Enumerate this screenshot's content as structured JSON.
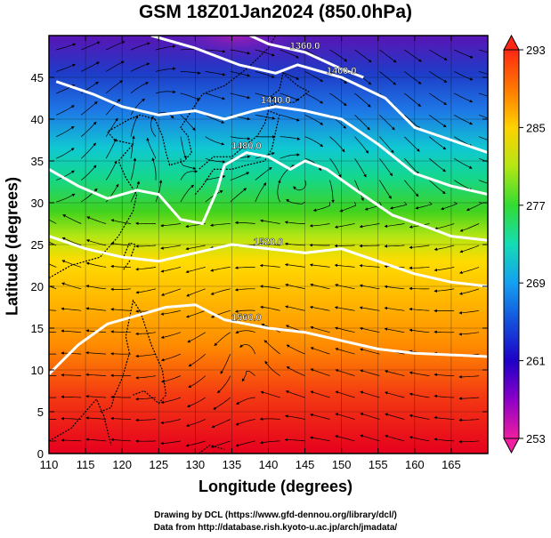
{
  "title": "GSM 18Z01Jan2024 (850.0hPa)",
  "axes": {
    "xlabel": "Longitude (degrees)",
    "ylabel": "Latitude  (degrees)",
    "x_ticks": [
      "110",
      "115",
      "120",
      "125",
      "130",
      "135",
      "140",
      "145",
      "150",
      "155",
      "160",
      "165"
    ],
    "y_ticks": [
      "0",
      "5",
      "10",
      "15",
      "20",
      "25",
      "30",
      "35",
      "40",
      "45"
    ]
  },
  "colorbar": {
    "labels": [
      "293",
      "285",
      "277",
      "269",
      "261",
      "253"
    ]
  },
  "contour_labels": [
    "1360.0",
    "1400.0",
    "1440.0",
    "1480.0",
    "1520.0",
    "1560.0"
  ],
  "credits": {
    "line1": "Drawing by DCL (https://www.gfd-dennou.org/library/dcl/)",
    "line2": "Data from http://database.rish.kyoto-u.ac.jp/arch/jmadata/"
  },
  "chart_data": {
    "type": "heatmap",
    "title": "GSM 18Z01Jan2024 (850.0hPa)",
    "xlabel": "Longitude (degrees)",
    "ylabel": "Latitude  (degrees)",
    "xlim": [
      110,
      170
    ],
    "ylim": [
      0,
      50
    ],
    "colorbar_range": [
      253,
      293
    ],
    "colorbar_ticks": [
      293,
      285,
      277,
      269,
      261,
      253
    ],
    "contour_levels": [
      1360,
      1400,
      1440,
      1480,
      1520,
      1560
    ],
    "contours": [
      {
        "level": 1360,
        "points": [
          [
            137.5,
            50
          ],
          [
            140,
            49
          ],
          [
            145,
            48
          ],
          [
            150,
            46
          ],
          [
            153,
            45
          ]
        ]
      },
      {
        "level": 1400,
        "points": [
          [
            124,
            50
          ],
          [
            130,
            48.5
          ],
          [
            136,
            46.5
          ],
          [
            141,
            45.5
          ],
          [
            144,
            46.5
          ],
          [
            150,
            45
          ],
          [
            156,
            42.5
          ],
          [
            160,
            39
          ],
          [
            165,
            37.5
          ],
          [
            170,
            36
          ]
        ]
      },
      {
        "level": 1440,
        "points": [
          [
            111,
            44.5
          ],
          [
            116,
            43
          ],
          [
            120,
            41.5
          ],
          [
            125,
            40.5
          ],
          [
            130,
            41
          ],
          [
            134,
            40
          ],
          [
            138,
            41
          ],
          [
            141,
            41.5
          ],
          [
            145,
            41
          ],
          [
            150,
            40
          ],
          [
            155,
            37
          ],
          [
            160,
            33.5
          ],
          [
            165,
            32
          ],
          [
            170,
            31
          ]
        ]
      },
      {
        "level": 1480,
        "points": [
          [
            110,
            34
          ],
          [
            114,
            32
          ],
          [
            118,
            30.5
          ],
          [
            122,
            31.5
          ],
          [
            125,
            31
          ],
          [
            128,
            28
          ],
          [
            131,
            27.5
          ],
          [
            133,
            31.5
          ],
          [
            134,
            34.5
          ],
          [
            137,
            36
          ],
          [
            140,
            35.5
          ],
          [
            143,
            34
          ],
          [
            145,
            35
          ],
          [
            148,
            34
          ],
          [
            152,
            31.5
          ],
          [
            157,
            28.5
          ],
          [
            162,
            27
          ],
          [
            165,
            26
          ],
          [
            170,
            25.5
          ]
        ]
      },
      {
        "level": 1520,
        "points": [
          [
            110,
            26
          ],
          [
            115,
            24.5
          ],
          [
            120,
            23.5
          ],
          [
            125,
            23
          ],
          [
            130,
            24
          ],
          [
            135,
            25
          ],
          [
            140,
            24.5
          ],
          [
            145,
            24
          ],
          [
            150,
            24.5
          ],
          [
            155,
            23
          ],
          [
            160,
            21.5
          ],
          [
            165,
            20.5
          ],
          [
            170,
            20
          ]
        ]
      },
      {
        "level": 1560,
        "points": [
          [
            110,
            9.5
          ],
          [
            114,
            13
          ],
          [
            118,
            15.5
          ],
          [
            122,
            16.5
          ],
          [
            126,
            17.5
          ],
          [
            130,
            17.8
          ],
          [
            134,
            16
          ],
          [
            137,
            15.5
          ],
          [
            140,
            15
          ],
          [
            145,
            14.5
          ],
          [
            150,
            13.5
          ],
          [
            155,
            12.5
          ],
          [
            160,
            12
          ],
          [
            165,
            11.8
          ],
          [
            170,
            11.6
          ]
        ]
      }
    ],
    "grid": true
  }
}
